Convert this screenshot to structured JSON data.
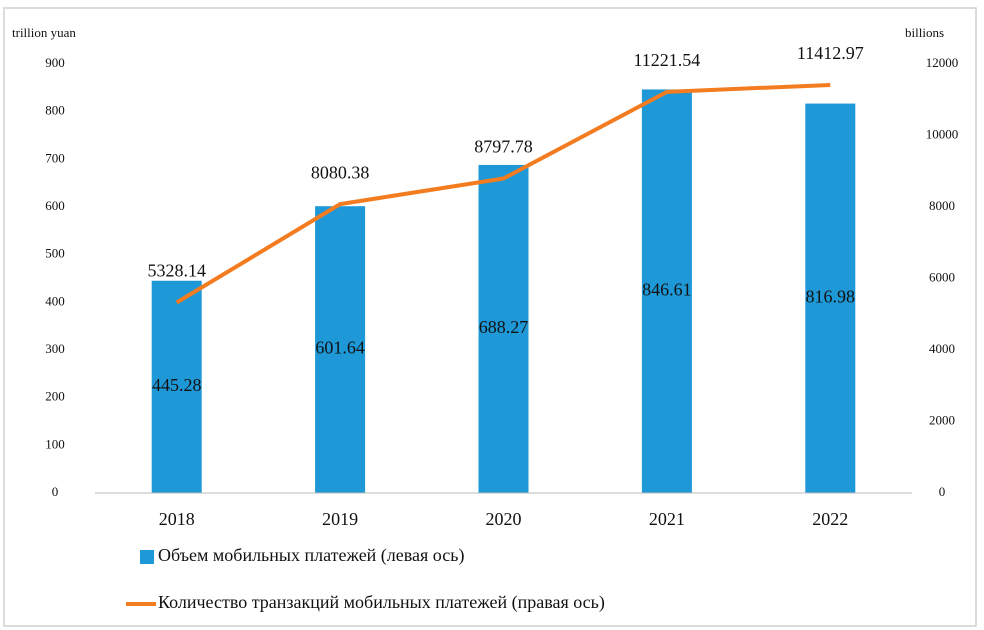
{
  "chart_data": {
    "type": "bar_line",
    "y_label": "trillion yuan",
    "y2_label": "billions",
    "categories": [
      "2018",
      "2019",
      "2020",
      "2021",
      "2022"
    ],
    "series": [
      {
        "name": "Объем мобильных платежей (левая ось)",
        "type": "bar",
        "color": "#1e98d6",
        "values": [
          445.28,
          601.64,
          688.27,
          846.61,
          816.98
        ]
      },
      {
        "name": "Количество транзакций мобильных платежей (правая ось)",
        "type": "line",
        "color": "#f47c20",
        "axis": "y2",
        "values": [
          5328.14,
          8080.38,
          8797.78,
          11221.54,
          11412.97
        ]
      }
    ],
    "ylim": [
      0,
      900
    ],
    "yticks": [
      0,
      100,
      200,
      300,
      400,
      500,
      600,
      700,
      800,
      900
    ],
    "y2lim": [
      0,
      12000
    ],
    "y2ticks": [
      0,
      2000,
      4000,
      6000,
      8000,
      10000,
      12000
    ],
    "grid": false,
    "legend": "bottom"
  }
}
